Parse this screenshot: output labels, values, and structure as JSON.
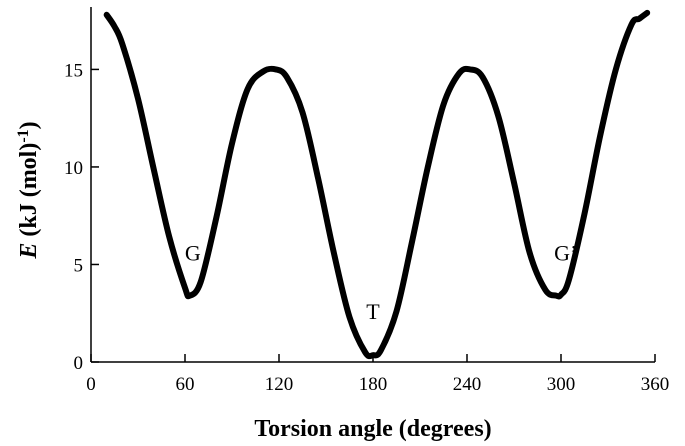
{
  "chart_data": {
    "type": "line",
    "title": "",
    "xlabel": "Torsion angle (degrees)",
    "ylabel": {
      "symbol": "E",
      "units": " (kJ (mol)",
      "exponent": "-1",
      "close": ")"
    },
    "xlim": [
      0,
      360
    ],
    "ylim": [
      0,
      18.2
    ],
    "xticks": [
      0,
      60,
      120,
      180,
      240,
      300,
      360
    ],
    "yticks": [
      0,
      5,
      10,
      15
    ],
    "grid": false,
    "legend": "none",
    "series": [
      {
        "color": "#000000",
        "x": [
          10,
          15,
          20,
          30,
          40,
          50,
          60,
          63,
          70,
          80,
          90,
          100,
          110,
          118,
          125,
          135,
          145,
          155,
          165,
          175,
          180,
          185,
          195,
          205,
          215,
          225,
          235,
          242,
          250,
          260,
          270,
          280,
          290,
          297,
          300,
          305,
          315,
          325,
          335,
          345,
          350,
          355
        ],
        "y": [
          17.8,
          17.2,
          16.3,
          13.5,
          9.9,
          6.4,
          3.8,
          3.4,
          4.1,
          7.4,
          11.2,
          14.0,
          14.9,
          15.0,
          14.6,
          12.8,
          9.4,
          5.6,
          2.3,
          0.5,
          0.35,
          0.6,
          2.6,
          6.2,
          10.0,
          13.2,
          14.8,
          15.0,
          14.6,
          12.6,
          9.2,
          5.6,
          3.7,
          3.4,
          3.45,
          4.2,
          7.6,
          11.6,
          15.0,
          17.3,
          17.6,
          17.9
        ]
      }
    ],
    "annotations": [
      {
        "text": "G",
        "x": 65,
        "y": 5.2
      },
      {
        "text": "T",
        "x": 180,
        "y": 2.2
      },
      {
        "text": "G’",
        "x": 303,
        "y": 5.2
      }
    ]
  }
}
